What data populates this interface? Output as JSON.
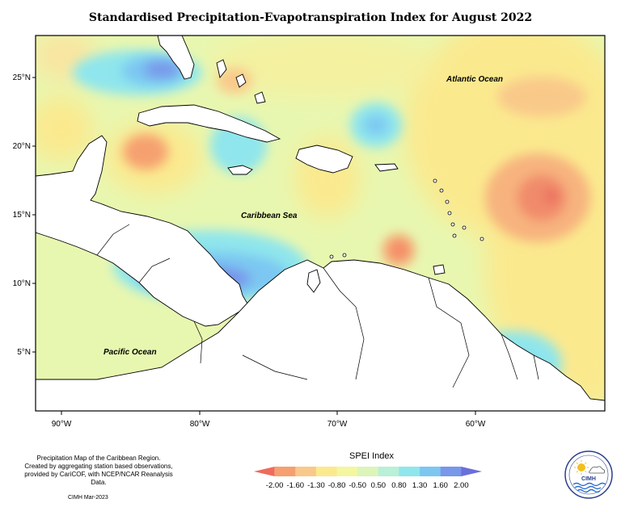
{
  "title": "Standardised Precipitation-Evapotranspiration Index for August 2022",
  "labels": {
    "atlantic": "Atlantic Ocean",
    "caribbean": "Caribbean Sea",
    "pacific": "Pacific Ocean"
  },
  "lat_ticks": [
    "25°N",
    "20°N",
    "15°N",
    "10°N",
    "5°N"
  ],
  "lon_ticks": [
    "90°W",
    "80°W",
    "70°W",
    "60°W"
  ],
  "notes": {
    "line1": "Precipitation Map of the Caribbean Region.",
    "line2": "Created by aggregating station based observations,",
    "line3": "provided by CariCOF, with NCEP/NCAR Reanalysis Data.",
    "credit": "CIMH Mar-2023"
  },
  "legend": {
    "title": "SPEI Index",
    "ticks": [
      "-2.00",
      "-1.60",
      "-1.30",
      "-0.80",
      "-0.50",
      "0.50",
      "0.80",
      "1.30",
      "1.60",
      "2.00"
    ],
    "colors": [
      "#ef6b5c",
      "#f6a070",
      "#f9c98a",
      "#fbe98e",
      "#f4f7a0",
      "#dcf5b8",
      "#b8f0d8",
      "#8fe6ec",
      "#7cc7f2",
      "#7896ea",
      "#6b6fd8"
    ]
  },
  "logo_text": "CIMH"
}
